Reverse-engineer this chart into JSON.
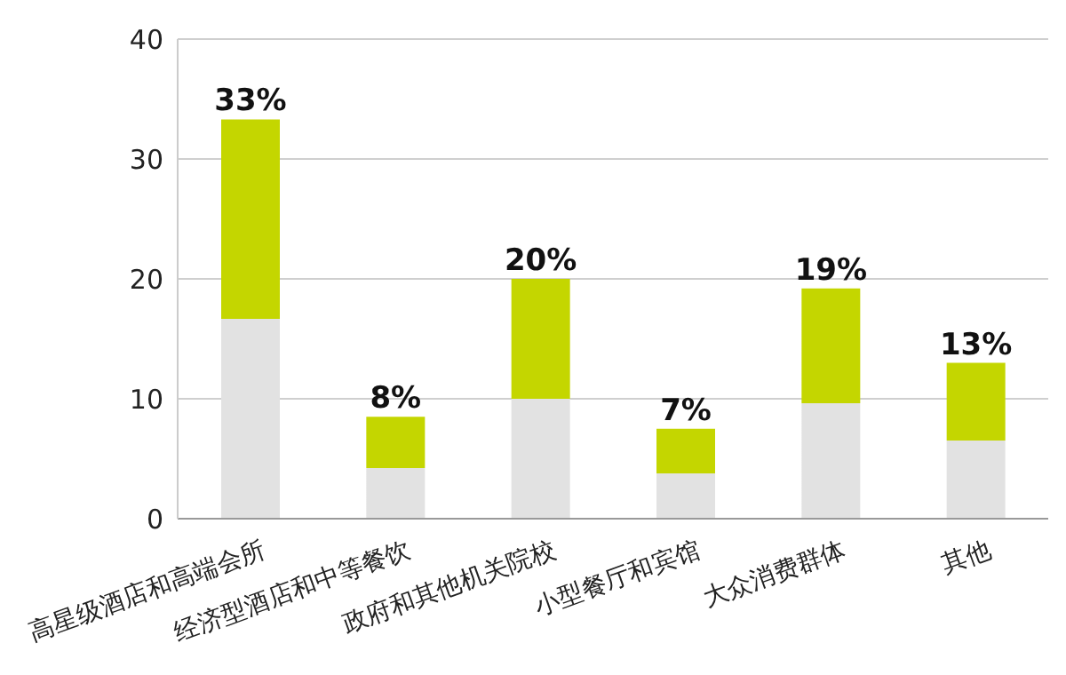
{
  "chart_data": {
    "type": "bar",
    "categories": [
      "高星级酒店和高端会所",
      "经济型酒店和中等餐饮",
      "政府和其他机关院校",
      "小型餐厅和宾馆",
      "大众消费群体",
      "其他"
    ],
    "values": [
      33.3,
      8.5,
      20,
      7.5,
      19.2,
      13
    ],
    "value_labels": [
      "33%",
      "8%",
      "20%",
      "7%",
      "19%",
      "13%"
    ],
    "color": "#c4d600",
    "ylim": [
      0,
      40
    ],
    "yticks": [
      0,
      10,
      20,
      30,
      40
    ],
    "grid": "y"
  }
}
